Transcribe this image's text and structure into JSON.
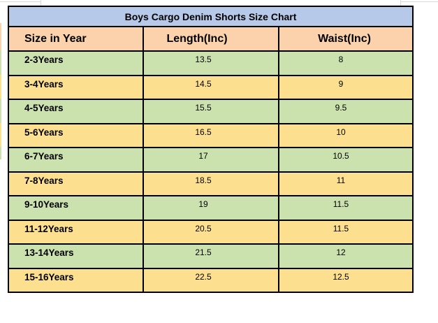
{
  "colors": {
    "title_bg": "#b6c9e8",
    "header_bg": "#fbd2ab",
    "row_green": "#cbe2af",
    "row_yellow": "#fce08f",
    "border": "#000000",
    "gridline": "#d9d9d9",
    "text": "#000000"
  },
  "chart_data": {
    "type": "table",
    "title": "Boys Cargo Denim Shorts Size Chart",
    "columns": [
      "Size in Year",
      "Length(Inc)",
      "Waist(Inc)"
    ],
    "rows": [
      [
        "2-3Years",
        "13.5",
        "8"
      ],
      [
        "3-4Years",
        "14.5",
        "9"
      ],
      [
        "4-5Years",
        "15.5",
        "9.5"
      ],
      [
        "5-6Years",
        "16.5",
        "10"
      ],
      [
        "6-7Years",
        "17",
        "10.5"
      ],
      [
        "7-8Years",
        "18.5",
        "11"
      ],
      [
        "9-10Years",
        "19",
        "11.5"
      ],
      [
        "11-12Years",
        "20.5",
        "11.5"
      ],
      [
        "13-14Years",
        "21.5",
        "12"
      ],
      [
        "15-16Years",
        "22.5",
        "12.5"
      ]
    ]
  }
}
